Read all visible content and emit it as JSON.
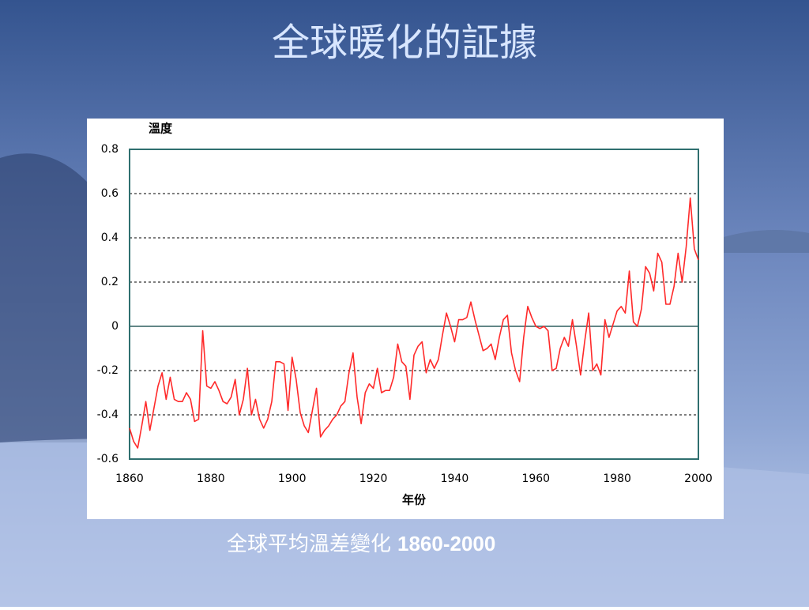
{
  "title": "全球暖化的証據",
  "caption": "全球平均溫差變化",
  "caption_years": "1860-2000",
  "chart_data": {
    "type": "line",
    "ylabel": "溫度",
    "xlabel": "年份",
    "color": "#ff2a2a",
    "grid": true,
    "xlim": [
      1860,
      2000
    ],
    "xticks": [
      1860,
      1880,
      1900,
      1920,
      1940,
      1960,
      1980,
      2000
    ],
    "ylim": [
      -0.6,
      0.8
    ],
    "yticks": [
      -0.6,
      -0.4,
      -0.2,
      0,
      0.2,
      0.4,
      0.6,
      0.8
    ],
    "x": [
      1860,
      1861,
      1862,
      1863,
      1864,
      1865,
      1866,
      1867,
      1868,
      1869,
      1870,
      1871,
      1872,
      1873,
      1874,
      1875,
      1876,
      1877,
      1878,
      1879,
      1880,
      1881,
      1882,
      1883,
      1884,
      1885,
      1886,
      1887,
      1888,
      1889,
      1890,
      1891,
      1892,
      1893,
      1894,
      1895,
      1896,
      1897,
      1898,
      1899,
      1900,
      1901,
      1902,
      1903,
      1904,
      1905,
      1906,
      1907,
      1908,
      1909,
      1910,
      1911,
      1912,
      1913,
      1914,
      1915,
      1916,
      1917,
      1918,
      1919,
      1920,
      1921,
      1922,
      1923,
      1924,
      1925,
      1926,
      1927,
      1928,
      1929,
      1930,
      1931,
      1932,
      1933,
      1934,
      1935,
      1936,
      1937,
      1938,
      1939,
      1940,
      1941,
      1942,
      1943,
      1944,
      1945,
      1946,
      1947,
      1948,
      1949,
      1950,
      1951,
      1952,
      1953,
      1954,
      1955,
      1956,
      1957,
      1958,
      1959,
      1960,
      1961,
      1962,
      1963,
      1964,
      1965,
      1966,
      1967,
      1968,
      1969,
      1970,
      1971,
      1972,
      1973,
      1974,
      1975,
      1976,
      1977,
      1978,
      1979,
      1980,
      1981,
      1982,
      1983,
      1984,
      1985,
      1986,
      1987,
      1988,
      1989,
      1990,
      1991,
      1992,
      1993,
      1994,
      1995,
      1996,
      1997,
      1998,
      1999,
      2000
    ],
    "values": [
      -0.46,
      -0.52,
      -0.55,
      -0.45,
      -0.34,
      -0.47,
      -0.37,
      -0.27,
      -0.21,
      -0.33,
      -0.23,
      -0.33,
      -0.34,
      -0.34,
      -0.3,
      -0.33,
      -0.43,
      -0.42,
      -0.02,
      -0.27,
      -0.28,
      -0.25,
      -0.29,
      -0.34,
      -0.35,
      -0.32,
      -0.24,
      -0.4,
      -0.33,
      -0.19,
      -0.4,
      -0.33,
      -0.42,
      -0.46,
      -0.42,
      -0.34,
      -0.16,
      -0.16,
      -0.17,
      -0.38,
      -0.14,
      -0.24,
      -0.39,
      -0.45,
      -0.48,
      -0.38,
      -0.28,
      -0.5,
      -0.47,
      -0.45,
      -0.42,
      -0.4,
      -0.36,
      -0.34,
      -0.21,
      -0.12,
      -0.32,
      -0.44,
      -0.3,
      -0.26,
      -0.28,
      -0.19,
      -0.3,
      -0.29,
      -0.29,
      -0.23,
      -0.08,
      -0.16,
      -0.18,
      -0.33,
      -0.13,
      -0.09,
      -0.07,
      -0.21,
      -0.15,
      -0.19,
      -0.15,
      -0.04,
      0.06,
      0.0,
      -0.07,
      0.03,
      0.03,
      0.04,
      0.11,
      0.03,
      -0.04,
      -0.11,
      -0.1,
      -0.08,
      -0.15,
      -0.05,
      0.03,
      0.05,
      -0.12,
      -0.2,
      -0.25,
      -0.05,
      0.09,
      0.04,
      0.0,
      -0.01,
      0.0,
      -0.02,
      -0.2,
      -0.19,
      -0.1,
      -0.05,
      -0.09,
      0.03,
      -0.09,
      -0.22,
      -0.07,
      0.06,
      -0.2,
      -0.17,
      -0.22,
      0.03,
      -0.05,
      0.01,
      0.07,
      0.09,
      0.06,
      0.25,
      0.02,
      0.0,
      0.08,
      0.27,
      0.24,
      0.16,
      0.33,
      0.29,
      0.1,
      0.1,
      0.18,
      0.33,
      0.2,
      0.36,
      0.58,
      0.35,
      0.3
    ]
  }
}
